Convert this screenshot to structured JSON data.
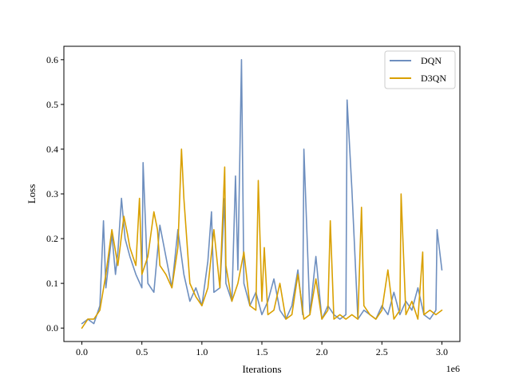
{
  "chart_data": {
    "type": "line",
    "xlabel": "Iterations",
    "ylabel": "Loss",
    "x_scale_label": "1e6",
    "xlim": [
      -0.15,
      3.15
    ],
    "ylim": [
      -0.03,
      0.63
    ],
    "x_ticks": [
      0.0,
      0.5,
      1.0,
      1.5,
      2.0,
      2.5,
      3.0
    ],
    "x_tick_labels": [
      "0.0",
      "0.5",
      "1.0",
      "1.5",
      "2.0",
      "2.5",
      "3.0"
    ],
    "y_ticks": [
      0.0,
      0.1,
      0.2,
      0.3,
      0.4,
      0.5,
      0.6
    ],
    "y_tick_labels": [
      "0.0",
      "0.1",
      "0.2",
      "0.3",
      "0.4",
      "0.5",
      "0.6"
    ],
    "grid": false,
    "legend": {
      "placement": "top-right"
    },
    "series": [
      {
        "name": "DQN",
        "color": "#6e8fbf",
        "x": [
          0.0,
          0.05,
          0.1,
          0.15,
          0.18,
          0.2,
          0.25,
          0.28,
          0.3,
          0.33,
          0.36,
          0.4,
          0.45,
          0.5,
          0.51,
          0.55,
          0.6,
          0.65,
          0.7,
          0.75,
          0.8,
          0.85,
          0.9,
          0.95,
          1.0,
          1.05,
          1.08,
          1.1,
          1.15,
          1.19,
          1.2,
          1.25,
          1.28,
          1.3,
          1.33,
          1.35,
          1.4,
          1.45,
          1.5,
          1.55,
          1.6,
          1.65,
          1.7,
          1.75,
          1.8,
          1.84,
          1.85,
          1.9,
          1.95,
          2.0,
          2.05,
          2.1,
          2.15,
          2.2,
          2.21,
          2.25,
          2.3,
          2.35,
          2.4,
          2.45,
          2.5,
          2.55,
          2.6,
          2.65,
          2.7,
          2.75,
          2.8,
          2.85,
          2.9,
          2.95,
          2.96,
          3.0
        ],
        "y": [
          0.01,
          0.02,
          0.01,
          0.05,
          0.24,
          0.09,
          0.21,
          0.12,
          0.17,
          0.29,
          0.2,
          0.16,
          0.12,
          0.09,
          0.37,
          0.1,
          0.08,
          0.23,
          0.16,
          0.09,
          0.22,
          0.12,
          0.06,
          0.09,
          0.05,
          0.15,
          0.26,
          0.08,
          0.09,
          0.29,
          0.1,
          0.06,
          0.34,
          0.13,
          0.6,
          0.1,
          0.05,
          0.08,
          0.03,
          0.06,
          0.11,
          0.04,
          0.02,
          0.05,
          0.13,
          0.03,
          0.4,
          0.03,
          0.16,
          0.02,
          0.05,
          0.03,
          0.02,
          0.03,
          0.51,
          0.31,
          0.02,
          0.04,
          0.03,
          0.02,
          0.05,
          0.03,
          0.08,
          0.03,
          0.06,
          0.04,
          0.09,
          0.03,
          0.02,
          0.04,
          0.22,
          0.13
        ]
      },
      {
        "name": "D3QN",
        "color": "#d9a000",
        "x": [
          0.0,
          0.05,
          0.1,
          0.15,
          0.2,
          0.22,
          0.25,
          0.3,
          0.35,
          0.38,
          0.4,
          0.45,
          0.48,
          0.5,
          0.55,
          0.6,
          0.63,
          0.65,
          0.7,
          0.75,
          0.8,
          0.83,
          0.85,
          0.9,
          0.95,
          1.0,
          1.05,
          1.1,
          1.15,
          1.19,
          1.2,
          1.25,
          1.3,
          1.35,
          1.4,
          1.45,
          1.47,
          1.5,
          1.52,
          1.55,
          1.6,
          1.65,
          1.7,
          1.75,
          1.8,
          1.85,
          1.9,
          1.95,
          2.0,
          2.05,
          2.07,
          2.1,
          2.15,
          2.2,
          2.25,
          2.3,
          2.33,
          2.35,
          2.4,
          2.45,
          2.5,
          2.55,
          2.6,
          2.65,
          2.66,
          2.7,
          2.75,
          2.8,
          2.84,
          2.85,
          2.9,
          2.95,
          3.0
        ],
        "y": [
          0.0,
          0.02,
          0.02,
          0.04,
          0.12,
          0.16,
          0.22,
          0.14,
          0.25,
          0.21,
          0.18,
          0.14,
          0.29,
          0.12,
          0.16,
          0.26,
          0.22,
          0.14,
          0.12,
          0.09,
          0.18,
          0.4,
          0.29,
          0.1,
          0.07,
          0.05,
          0.09,
          0.22,
          0.09,
          0.36,
          0.14,
          0.06,
          0.1,
          0.17,
          0.05,
          0.04,
          0.33,
          0.06,
          0.18,
          0.03,
          0.04,
          0.1,
          0.02,
          0.03,
          0.12,
          0.02,
          0.03,
          0.11,
          0.02,
          0.04,
          0.24,
          0.02,
          0.03,
          0.02,
          0.03,
          0.02,
          0.27,
          0.05,
          0.03,
          0.02,
          0.04,
          0.13,
          0.02,
          0.04,
          0.3,
          0.03,
          0.06,
          0.02,
          0.17,
          0.03,
          0.04,
          0.03,
          0.04
        ]
      }
    ]
  }
}
